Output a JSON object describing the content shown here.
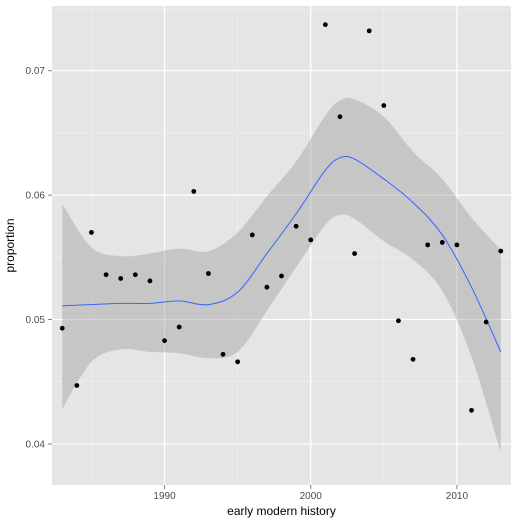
{
  "chart_data": {
    "type": "scatter",
    "title": "",
    "xlabel": "early modern history",
    "ylabel": "proportion",
    "xlim": [
      1982.3,
      2013.7
    ],
    "ylim": [
      0.0367,
      0.0752
    ],
    "x_ticks": [
      1990,
      2000,
      2010
    ],
    "y_ticks": [
      0.04,
      0.05,
      0.06,
      0.07
    ],
    "x_tick_labels": [
      "1990",
      "2000",
      "2010"
    ],
    "y_tick_labels": [
      "0.04",
      "0.05",
      "0.06",
      "0.07"
    ],
    "grid": true,
    "colors": {
      "panel_background": "#e5e5e5",
      "grid_major": "#ffffff",
      "grid_minor": "#f2f2f2",
      "points": "#000000",
      "smooth_line": "#3366ff",
      "confidence_band": "#999999"
    },
    "points": [
      {
        "x": 1983,
        "y": 0.0493
      },
      {
        "x": 1984,
        "y": 0.0447
      },
      {
        "x": 1985,
        "y": 0.057
      },
      {
        "x": 1986,
        "y": 0.0536
      },
      {
        "x": 1987,
        "y": 0.0533
      },
      {
        "x": 1988,
        "y": 0.0536
      },
      {
        "x": 1989,
        "y": 0.0531
      },
      {
        "x": 1990,
        "y": 0.0483
      },
      {
        "x": 1991,
        "y": 0.0494
      },
      {
        "x": 1992,
        "y": 0.0603
      },
      {
        "x": 1993,
        "y": 0.0537
      },
      {
        "x": 1994,
        "y": 0.0472
      },
      {
        "x": 1995,
        "y": 0.0466
      },
      {
        "x": 1996,
        "y": 0.0568
      },
      {
        "x": 1997,
        "y": 0.0526
      },
      {
        "x": 1998,
        "y": 0.0535
      },
      {
        "x": 1999,
        "y": 0.0575
      },
      {
        "x": 2000,
        "y": 0.0564
      },
      {
        "x": 2001,
        "y": 0.0737
      },
      {
        "x": 2002,
        "y": 0.0663
      },
      {
        "x": 2003,
        "y": 0.0553
      },
      {
        "x": 2004,
        "y": 0.0732
      },
      {
        "x": 2005,
        "y": 0.0672
      },
      {
        "x": 2006,
        "y": 0.0499
      },
      {
        "x": 2007,
        "y": 0.0468
      },
      {
        "x": 2008,
        "y": 0.056
      },
      {
        "x": 2009,
        "y": 0.0562
      },
      {
        "x": 2010,
        "y": 0.056
      },
      {
        "x": 2011,
        "y": 0.0427
      },
      {
        "x": 2012,
        "y": 0.0498
      },
      {
        "x": 2013,
        "y": 0.0555
      }
    ],
    "smooth": {
      "x": [
        1983,
        1985,
        1987,
        1989,
        1991,
        1993,
        1995,
        1997,
        1999,
        2001,
        2002,
        2003,
        2005,
        2007,
        2009,
        2011,
        2013
      ],
      "y": [
        0.0511,
        0.0512,
        0.0513,
        0.0513,
        0.0515,
        0.0512,
        0.0522,
        0.0553,
        0.0585,
        0.062,
        0.063,
        0.0629,
        0.0613,
        0.0594,
        0.0568,
        0.0526,
        0.0474
      ],
      "upper": [
        0.0593,
        0.0558,
        0.0551,
        0.0553,
        0.0557,
        0.0555,
        0.057,
        0.0599,
        0.0627,
        0.0664,
        0.0676,
        0.0677,
        0.0663,
        0.0635,
        0.0613,
        0.0582,
        0.0556
      ],
      "lower": [
        0.0428,
        0.0466,
        0.0476,
        0.0474,
        0.0473,
        0.0469,
        0.0474,
        0.0507,
        0.0542,
        0.0576,
        0.0584,
        0.0581,
        0.0563,
        0.0548,
        0.0523,
        0.047,
        0.0393
      ]
    }
  }
}
